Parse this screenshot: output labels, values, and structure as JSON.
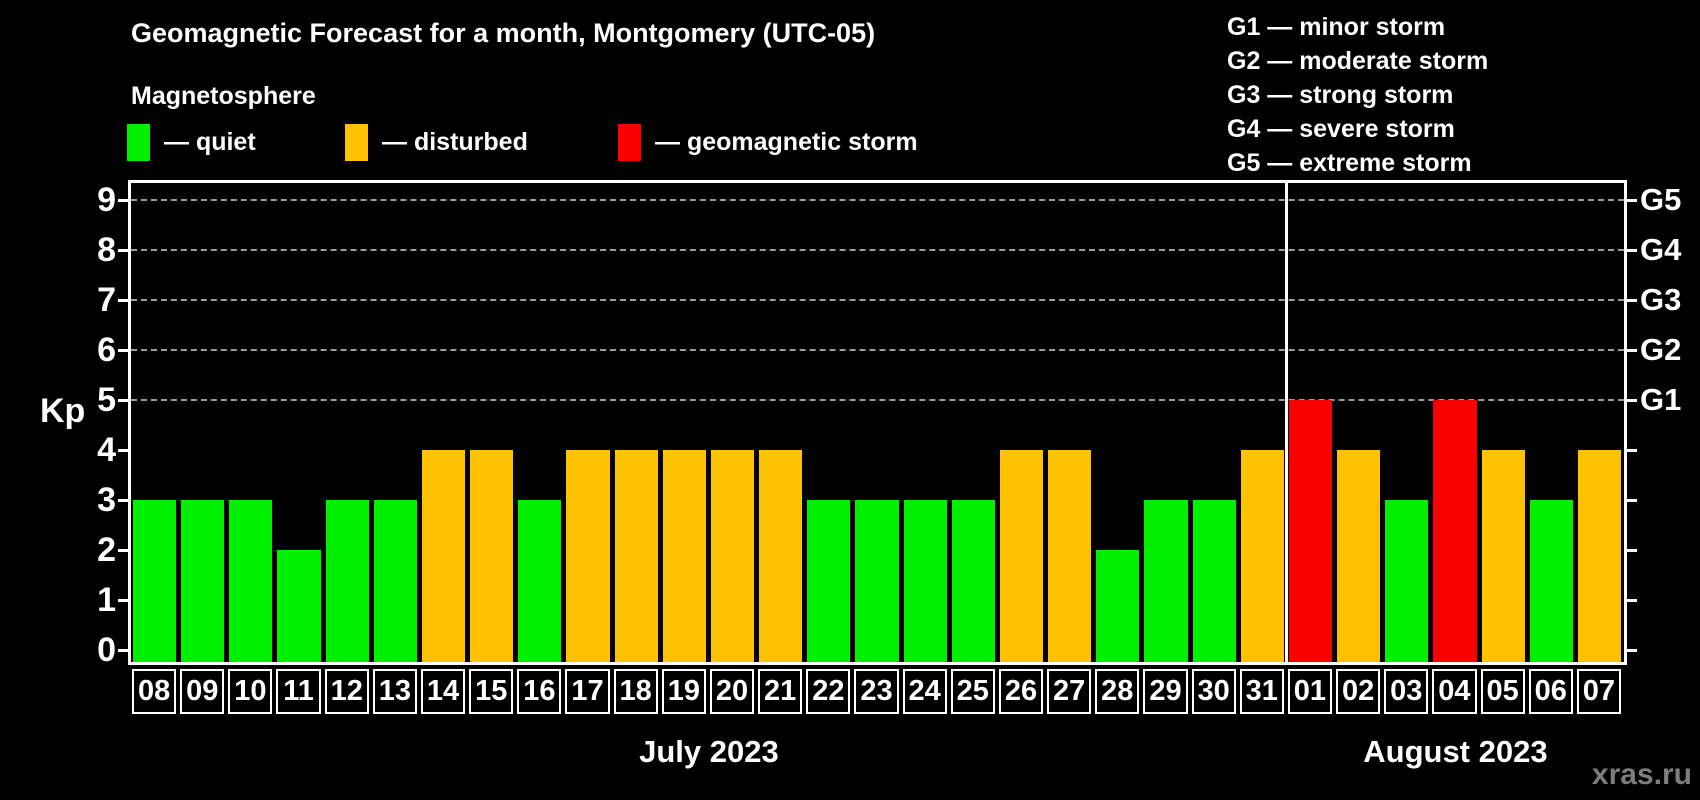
{
  "header": {
    "title": "Geomagnetic Forecast for a month, Montgomery (UTC-05)",
    "subtitle": "Magnetosphere"
  },
  "legend": {
    "dash": "—",
    "items": [
      {
        "status": "quiet",
        "label": "quiet",
        "color": "#00f000",
        "x": 0
      },
      {
        "status": "disturbed",
        "label": "disturbed",
        "color": "#ffc200",
        "x": 218
      },
      {
        "status": "storm",
        "label": "geomagnetic storm",
        "color": "#fb0000",
        "x": 491
      }
    ]
  },
  "g_scale_legend": [
    {
      "code": "G1",
      "desc": "minor storm"
    },
    {
      "code": "G2",
      "desc": "moderate storm"
    },
    {
      "code": "G3",
      "desc": "strong storm"
    },
    {
      "code": "G4",
      "desc": "severe storm"
    },
    {
      "code": "G5",
      "desc": "extreme storm"
    }
  ],
  "watermark": "xras.ru",
  "chart_data": {
    "type": "bar",
    "title": "Geomagnetic Forecast for a month, Montgomery (UTC-05)",
    "ylabel": "Kp",
    "ylim": [
      -0.25,
      9.35
    ],
    "yticks": [
      0,
      1,
      2,
      3,
      4,
      5,
      6,
      7,
      8,
      9
    ],
    "gridlines_at": [
      5,
      6,
      7,
      8,
      9
    ],
    "grid": "dashed horizontal at storm levels",
    "legend_position": "top",
    "right_axis": [
      {
        "kp": 5,
        "label": "G1"
      },
      {
        "kp": 6,
        "label": "G2"
      },
      {
        "kp": 7,
        "label": "G3"
      },
      {
        "kp": 8,
        "label": "G4"
      },
      {
        "kp": 9,
        "label": "G5"
      }
    ],
    "months": [
      {
        "label": "July 2023",
        "count": 24
      },
      {
        "label": "August 2023",
        "count": 7
      }
    ],
    "bars": [
      {
        "day": "08",
        "kp": 3,
        "status": "quiet"
      },
      {
        "day": "09",
        "kp": 3,
        "status": "quiet"
      },
      {
        "day": "10",
        "kp": 3,
        "status": "quiet"
      },
      {
        "day": "11",
        "kp": 2,
        "status": "quiet"
      },
      {
        "day": "12",
        "kp": 3,
        "status": "quiet"
      },
      {
        "day": "13",
        "kp": 3,
        "status": "quiet"
      },
      {
        "day": "14",
        "kp": 4,
        "status": "disturbed"
      },
      {
        "day": "15",
        "kp": 4,
        "status": "disturbed"
      },
      {
        "day": "16",
        "kp": 3,
        "status": "quiet"
      },
      {
        "day": "17",
        "kp": 4,
        "status": "disturbed"
      },
      {
        "day": "18",
        "kp": 4,
        "status": "disturbed"
      },
      {
        "day": "19",
        "kp": 4,
        "status": "disturbed"
      },
      {
        "day": "20",
        "kp": 4,
        "status": "disturbed"
      },
      {
        "day": "21",
        "kp": 4,
        "status": "disturbed"
      },
      {
        "day": "22",
        "kp": 3,
        "status": "quiet"
      },
      {
        "day": "23",
        "kp": 3,
        "status": "quiet"
      },
      {
        "day": "24",
        "kp": 3,
        "status": "quiet"
      },
      {
        "day": "25",
        "kp": 3,
        "status": "quiet"
      },
      {
        "day": "26",
        "kp": 4,
        "status": "disturbed"
      },
      {
        "day": "27",
        "kp": 4,
        "status": "disturbed"
      },
      {
        "day": "28",
        "kp": 2,
        "status": "quiet"
      },
      {
        "day": "29",
        "kp": 3,
        "status": "quiet"
      },
      {
        "day": "30",
        "kp": 3,
        "status": "quiet"
      },
      {
        "day": "31",
        "kp": 4,
        "status": "disturbed"
      },
      {
        "day": "01",
        "kp": 5,
        "status": "storm"
      },
      {
        "day": "02",
        "kp": 4,
        "status": "disturbed"
      },
      {
        "day": "03",
        "kp": 3,
        "status": "quiet"
      },
      {
        "day": "04",
        "kp": 5,
        "status": "storm"
      },
      {
        "day": "05",
        "kp": 4,
        "status": "disturbed"
      },
      {
        "day": "06",
        "kp": 3,
        "status": "quiet"
      },
      {
        "day": "07",
        "kp": 4,
        "status": "disturbed"
      }
    ]
  }
}
